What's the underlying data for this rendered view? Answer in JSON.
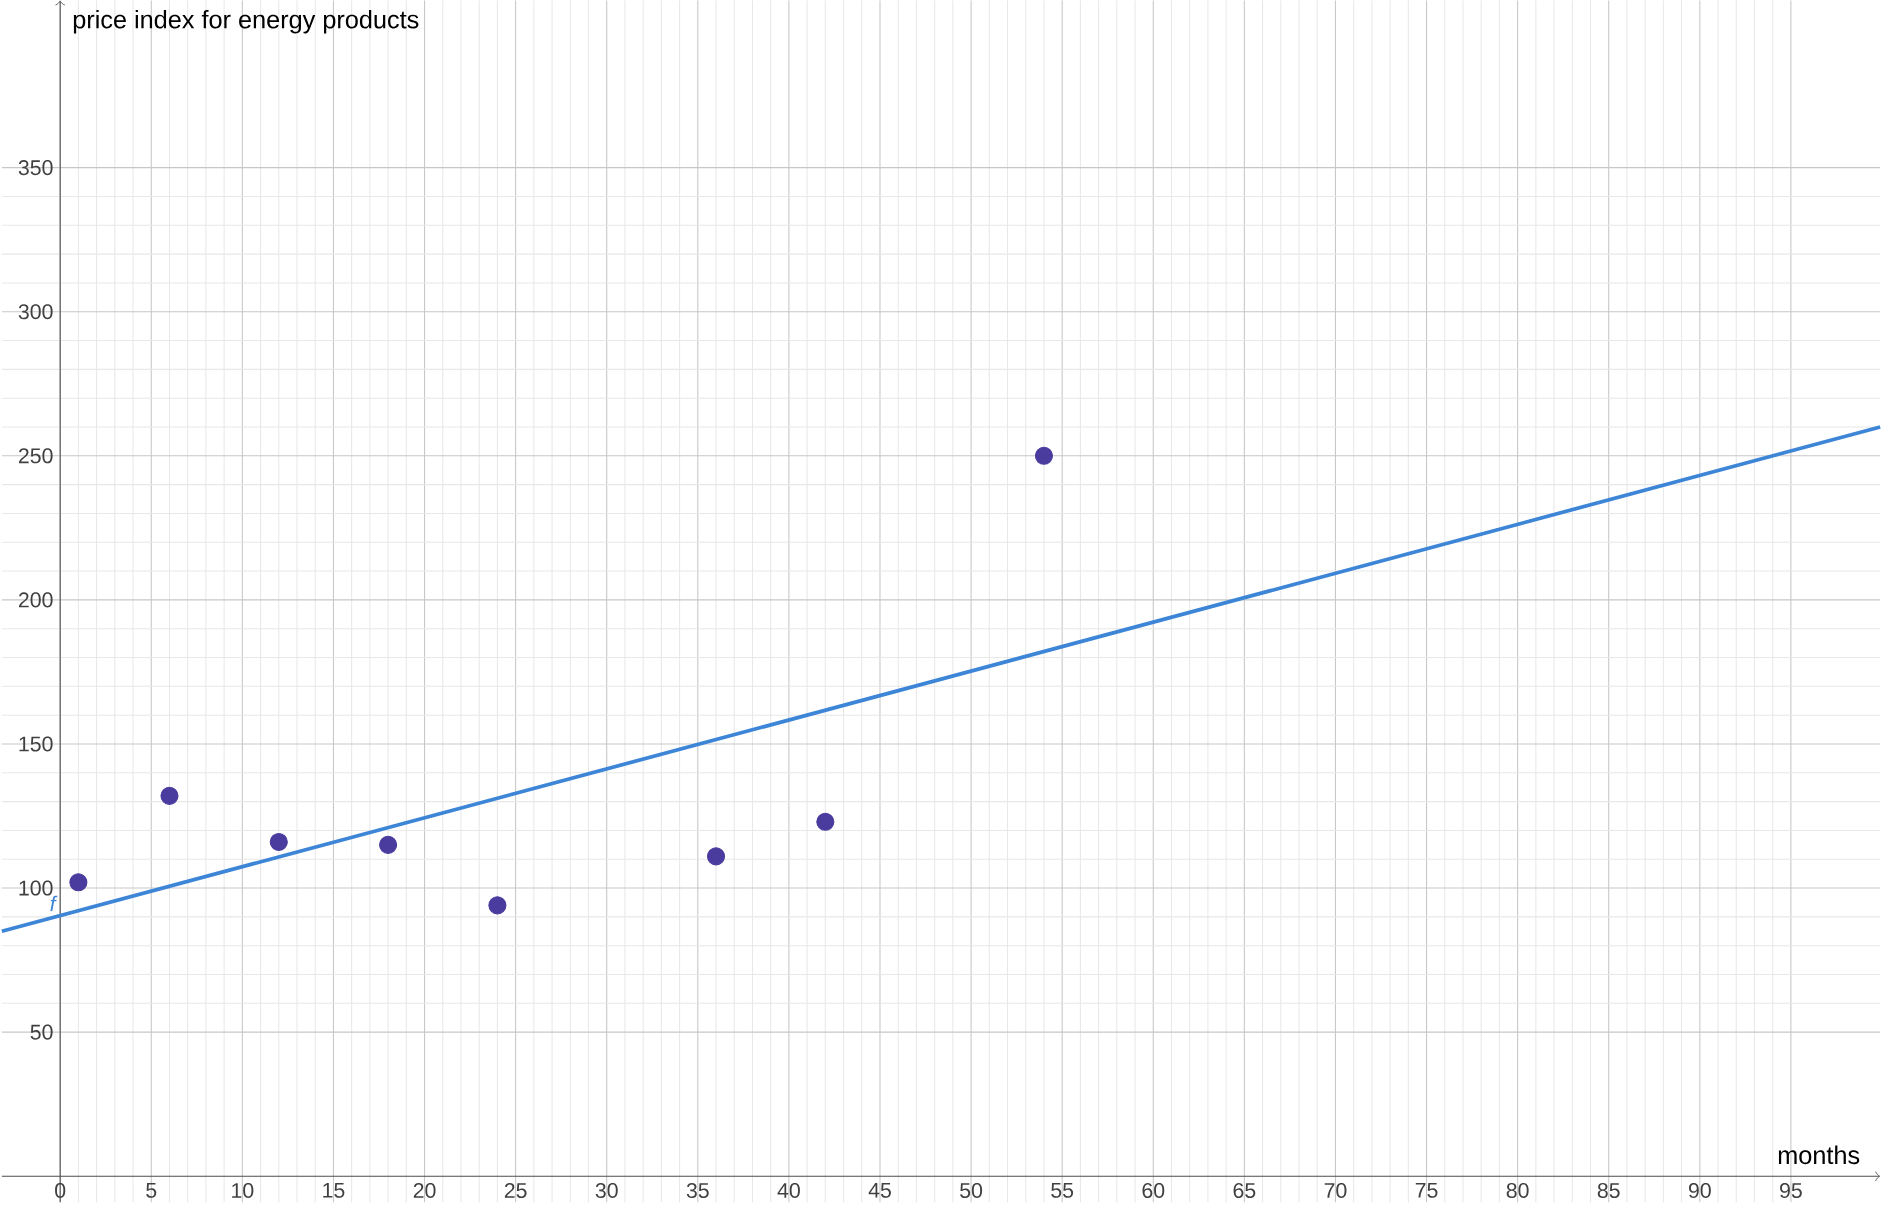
{
  "chart_data": {
    "type": "scatter",
    "xlabel": "months",
    "ylabel": "price index for energy products",
    "xlim": [
      -3.2,
      99.9
    ],
    "ylim": [
      -9,
      408
    ],
    "xticks": [
      0,
      5,
      10,
      15,
      20,
      25,
      30,
      35,
      40,
      45,
      50,
      55,
      60,
      65,
      70,
      75,
      80,
      85,
      90,
      95
    ],
    "yticks": [
      50,
      100,
      150,
      200,
      250,
      300,
      350
    ],
    "grid": true,
    "series": [
      {
        "marker": "circle",
        "color": "#4a3c9e",
        "x": [
          1,
          6,
          12,
          18,
          24,
          36,
          42,
          54
        ],
        "values": [
          102,
          132,
          116,
          115,
          94,
          111,
          123,
          250
        ]
      },
      {
        "type": "line",
        "marker": "none",
        "name": "f",
        "color": "#3d85d6",
        "x": [
          -3.2,
          99.9
        ],
        "values": [
          85,
          260
        ]
      }
    ]
  }
}
